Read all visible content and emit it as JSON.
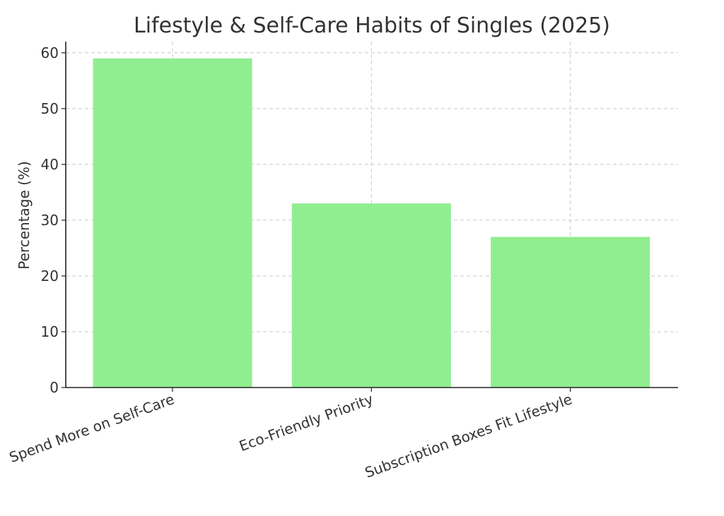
{
  "chart_data": {
    "type": "bar",
    "title": "Lifestyle & Self-Care Habits of Singles (2025)",
    "xlabel": "",
    "ylabel": "Percentage (%)",
    "categories": [
      "Spend More on Self-Care",
      "Eco-Friendly Priority",
      "Subscription Boxes Fit Lifestyle"
    ],
    "values": [
      59,
      33,
      27
    ],
    "ylim": [
      0,
      62
    ],
    "yticks": [
      0,
      10,
      20,
      30,
      40,
      50,
      60
    ],
    "bar_color": "#90ee90",
    "grid": true,
    "legend": "none"
  }
}
